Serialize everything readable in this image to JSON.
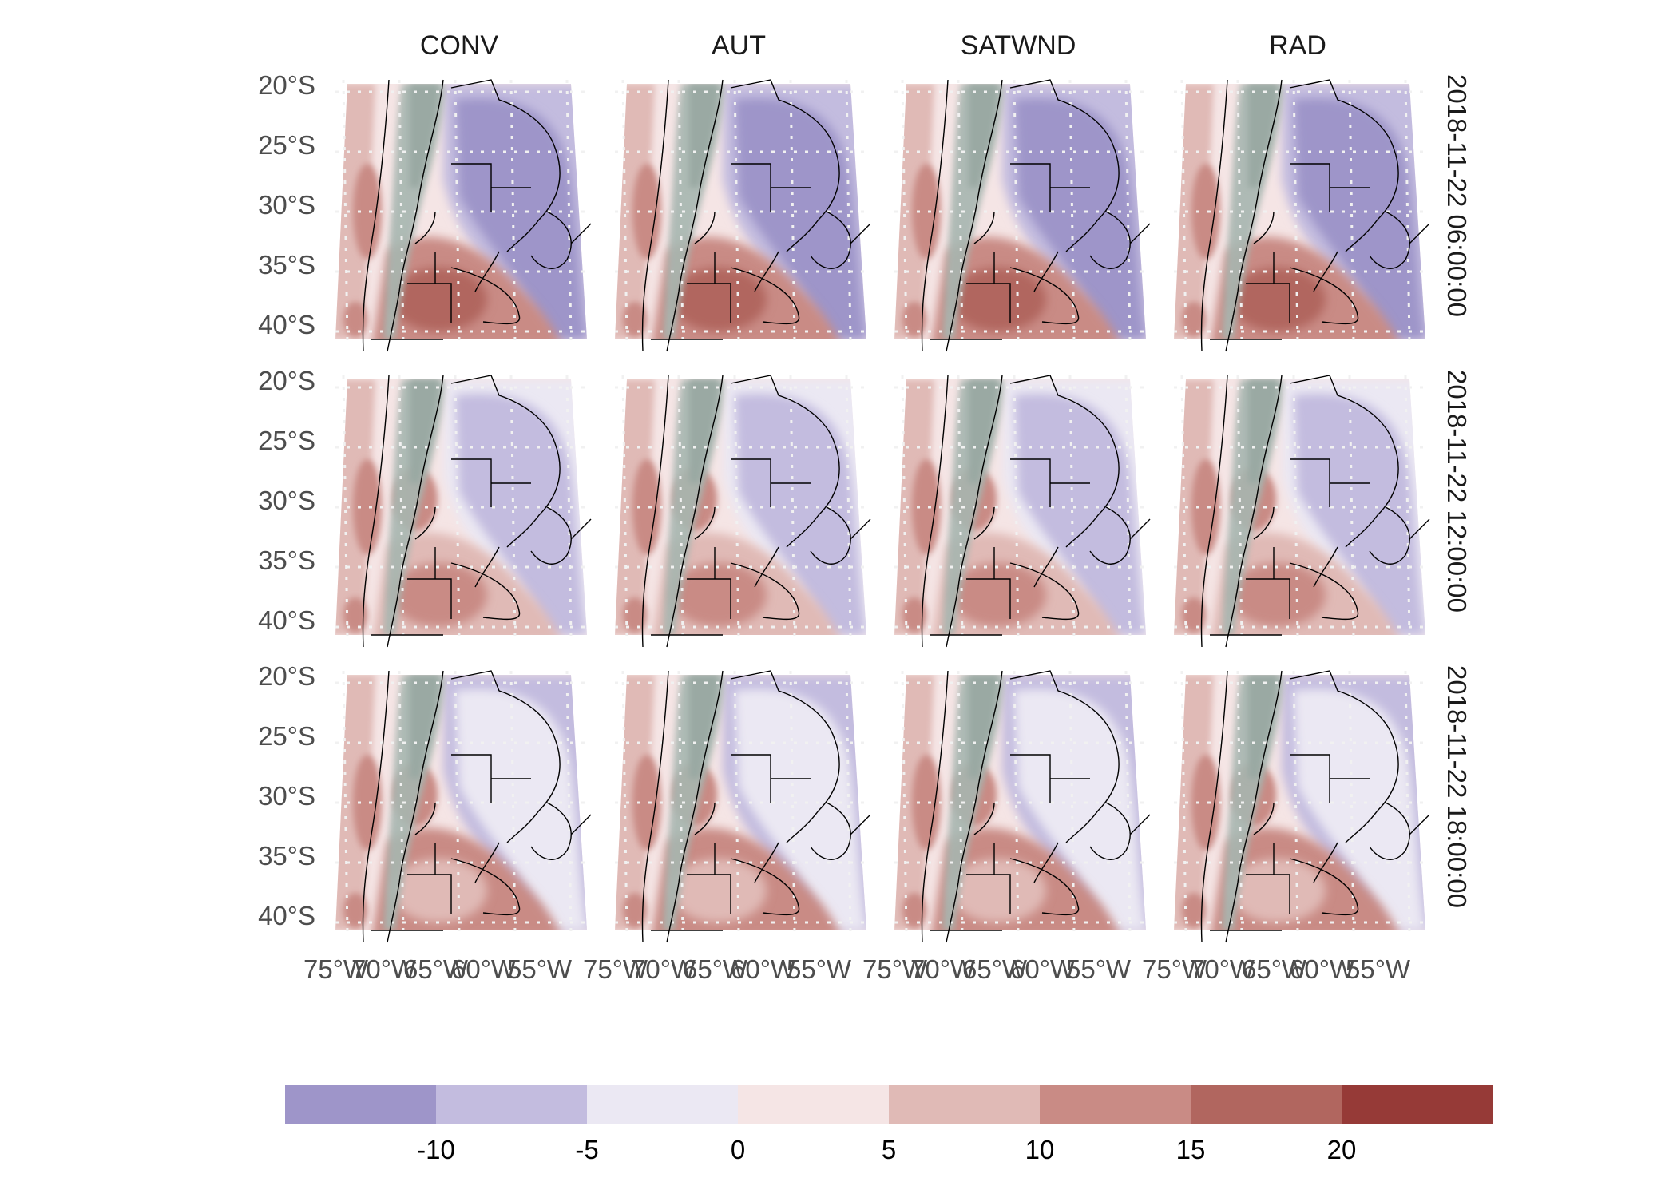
{
  "columns": [
    "CONV",
    "AUT",
    "SATWND",
    "RAD"
  ],
  "rows": [
    "2018-11-22 06:00:00",
    "2018-11-22 12:00:00",
    "2018-11-22 18:00:00"
  ],
  "lat_labels": [
    "20°S",
    "25°S",
    "30°S",
    "35°S",
    "40°S"
  ],
  "lon_labels": [
    "75°W",
    "70°W",
    "65°W",
    "60°W",
    "55°W"
  ],
  "colorbar": {
    "ticks": [
      "-10",
      "-5",
      "0",
      "5",
      "10",
      "15",
      "20"
    ],
    "colors": [
      "#9e95c9",
      "#c3bcdf",
      "#ebe8f3",
      "#f5e5e5",
      "#e0bab6",
      "#c98b85",
      "#b1665f",
      "#963a37"
    ]
  },
  "colors": {
    "terrain": "#a7b6b0",
    "border": "#000000",
    "grid": "#e6e6e6"
  }
}
